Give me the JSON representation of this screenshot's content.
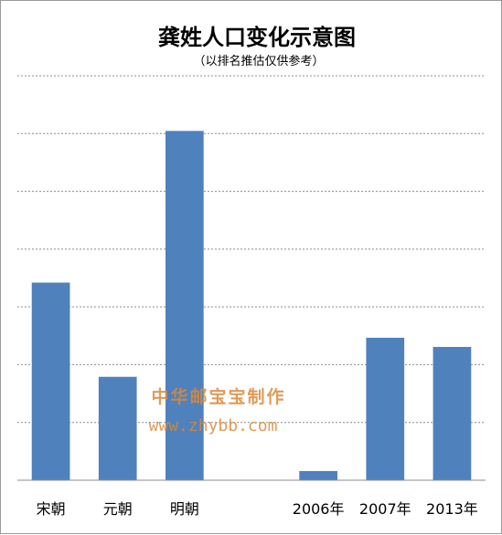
{
  "chart_data": {
    "type": "bar",
    "title": "龚姓人口变化示意图",
    "subtitle": "（以排名推估仅供参考）",
    "categories": [
      "宋朝",
      "元朝",
      "明朝",
      "",
      "2006年",
      "2007年",
      "2013年"
    ],
    "values": [
      43,
      22.5,
      76,
      null,
      2,
      31,
      29
    ],
    "ylim": [
      0,
      88
    ],
    "grid": true,
    "bar_color": "#4f81bd",
    "gridline_color": "#8c8c8c"
  },
  "watermark": {
    "line1": "中华邮宝宝制作",
    "line2": "www.zhybb.com"
  }
}
